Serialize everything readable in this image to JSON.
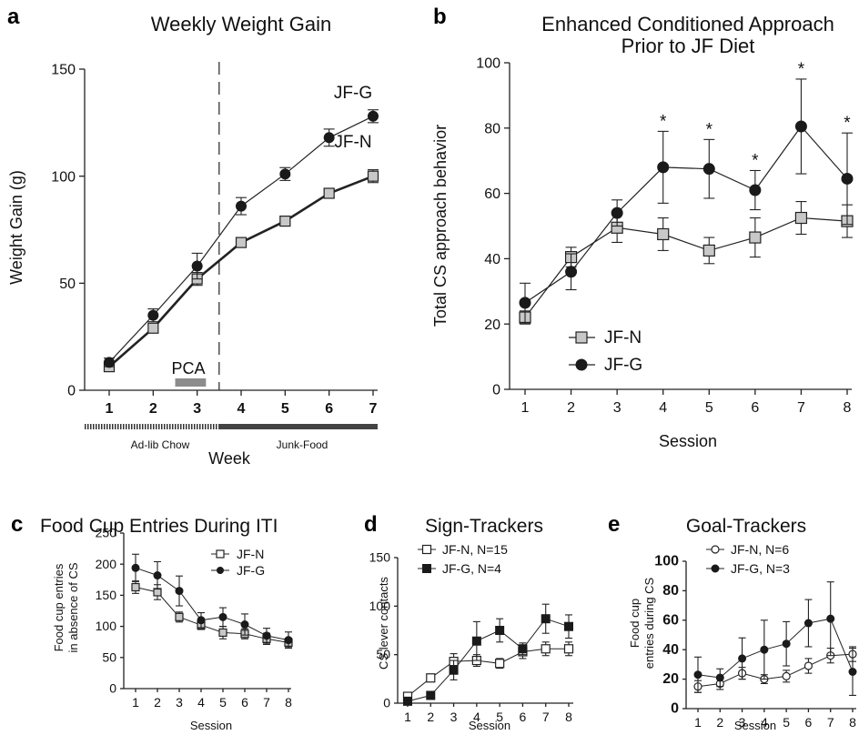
{
  "colors": {
    "jfn_fill": "#c8c8c8",
    "jfg_fill": "#1a1a1a",
    "line": "#222222",
    "pca_bar": "#8c8c8c"
  },
  "panels": {
    "a": {
      "letter": "a",
      "title": "Weekly Weight Gain",
      "ylabel": "Weight  Gain (g)",
      "xlabel": "Week",
      "series_label_g": "JF-G",
      "series_label_n": "JF-N",
      "pca_label": "PCA",
      "period_chow": "Ad-lib Chow",
      "period_junk": "Junk-Food"
    },
    "b": {
      "letter": "b",
      "title_line1": "Enhanced Conditioned Approach",
      "title_line2": "Prior to JF Diet",
      "ylabel": "Total CS approach behavior",
      "xlabel": "Session",
      "legend_n": "JF-N",
      "legend_g": "JF-G"
    },
    "c": {
      "letter": "c",
      "title": "Food Cup Entries During ITI",
      "ylabel_line1": "Food cup  entries",
      "ylabel_line2": "in absence of CS",
      "xlabel": "Session",
      "legend_n": "JF-N",
      "legend_g": "JF-G"
    },
    "d": {
      "letter": "d",
      "title": "Sign-Trackers",
      "ylabel": "CS lever contacts",
      "xlabel": "Session",
      "legend_n": "JF-N,  N=15",
      "legend_g": "JF-G,  N=4"
    },
    "e": {
      "letter": "e",
      "title": "Goal-Trackers",
      "ylabel_line1": "Food cup",
      "ylabel_line2": "entries during CS",
      "xlabel": "Session",
      "legend_n": "JF-N, N=6",
      "legend_g": "JF-G, N=3"
    }
  },
  "chart_data": [
    {
      "type": "line",
      "panel": "a",
      "title": "Weekly Weight Gain",
      "xlabel": "Week",
      "ylabel": "Weight  Gain (g)",
      "x": [
        1,
        2,
        3,
        4,
        5,
        6,
        7
      ],
      "ylim": [
        0,
        150
      ],
      "yticks": [
        0,
        50,
        100,
        150
      ],
      "series": [
        {
          "name": "JF-N",
          "marker": "square",
          "values": [
            11,
            29,
            52,
            69,
            79,
            92,
            100
          ],
          "err": [
            2,
            2,
            3,
            2,
            2,
            2,
            3
          ]
        },
        {
          "name": "JF-G",
          "marker": "circle",
          "values": [
            13,
            35,
            58,
            86,
            101,
            118,
            128
          ],
          "err": [
            2,
            3,
            6,
            4,
            3,
            4,
            3
          ]
        }
      ],
      "diet_switch_after_week": 3.5,
      "pca_weeks": [
        2.5,
        3.2
      ],
      "annotations": [
        "PCA",
        "Ad-lib Chow",
        "Junk-Food"
      ]
    },
    {
      "type": "line",
      "panel": "b",
      "title": "Enhanced Conditioned Approach Prior to JF Diet",
      "xlabel": "Session",
      "ylabel": "Total CS approach behavior",
      "x": [
        1,
        2,
        3,
        4,
        5,
        6,
        7,
        8
      ],
      "ylim": [
        0,
        100
      ],
      "yticks": [
        0,
        20,
        40,
        60,
        80,
        100
      ],
      "series": [
        {
          "name": "JF-N",
          "marker": "square",
          "values": [
            22,
            40.5,
            49.5,
            47.5,
            42.5,
            46.5,
            52.5,
            51.5
          ],
          "err": [
            2,
            3,
            4.5,
            5,
            4,
            6,
            5,
            5
          ]
        },
        {
          "name": "JF-G",
          "marker": "circle",
          "values": [
            26.5,
            36,
            54,
            68,
            67.5,
            61,
            80.5,
            64.5
          ],
          "err": [
            6,
            5.5,
            4,
            11,
            9,
            6,
            14.5,
            14
          ]
        }
      ],
      "significant_sessions": [
        4,
        5,
        6,
        7,
        8
      ],
      "legend": "bottom-left"
    },
    {
      "type": "line",
      "panel": "c",
      "title": "Food Cup Entries During ITI",
      "xlabel": "Session",
      "ylabel": "Food cup  entries in absence of CS",
      "x": [
        1,
        2,
        3,
        4,
        5,
        6,
        7,
        8
      ],
      "ylim": [
        0,
        250
      ],
      "yticks": [
        0,
        50,
        100,
        150,
        200,
        250
      ],
      "series": [
        {
          "name": "JF-N",
          "marker": "square",
          "values": [
            163,
            155,
            115,
            102,
            90,
            88,
            80,
            74
          ],
          "err": [
            10,
            12,
            8,
            7,
            10,
            8,
            9,
            7
          ]
        },
        {
          "name": "JF-G",
          "marker": "circle",
          "values": [
            194,
            182,
            157,
            110,
            115,
            103,
            85,
            78
          ],
          "err": [
            22,
            22,
            24,
            12,
            15,
            17,
            12,
            13
          ]
        }
      ],
      "legend": "top-right"
    },
    {
      "type": "line",
      "panel": "d",
      "title": "Sign-Trackers",
      "xlabel": "Session",
      "ylabel": "CS lever contacts",
      "x": [
        1,
        2,
        3,
        4,
        5,
        6,
        7,
        8
      ],
      "ylim": [
        0,
        150
      ],
      "yticks": [
        0,
        50,
        100,
        150
      ],
      "series": [
        {
          "name": "JF-N,  N=15",
          "marker": "square-open",
          "values": [
            7,
            26,
            43,
            44,
            41,
            53,
            56,
            56
          ],
          "err": [
            3,
            4,
            8,
            6,
            5,
            7,
            7,
            7
          ]
        },
        {
          "name": "JF-G,  N=4",
          "marker": "square-filled",
          "values": [
            2,
            8,
            34,
            64,
            75,
            56,
            87,
            79
          ],
          "err": [
            2,
            3,
            10,
            20,
            12,
            6,
            15,
            12
          ]
        }
      ],
      "legend": "top-left"
    },
    {
      "type": "line",
      "panel": "e",
      "title": "Goal-Trackers",
      "xlabel": "Session",
      "ylabel": "Food cup entries during CS",
      "x": [
        1,
        2,
        3,
        4,
        5,
        6,
        7,
        8
      ],
      "ylim": [
        0,
        100
      ],
      "yticks": [
        0,
        20,
        40,
        60,
        80,
        100
      ],
      "series": [
        {
          "name": "JF-N, N=6",
          "marker": "circle-open",
          "values": [
            15,
            17,
            24,
            20,
            22,
            29,
            36,
            37
          ],
          "err": [
            4,
            4,
            4,
            3,
            4,
            5,
            5,
            5
          ]
        },
        {
          "name": "JF-G, N=3",
          "marker": "circle-filled",
          "values": [
            23,
            21,
            34,
            40,
            44,
            58,
            61,
            25
          ],
          "err": [
            12,
            6,
            14,
            20,
            15,
            16,
            25,
            16
          ]
        }
      ],
      "legend": "top-left"
    }
  ]
}
